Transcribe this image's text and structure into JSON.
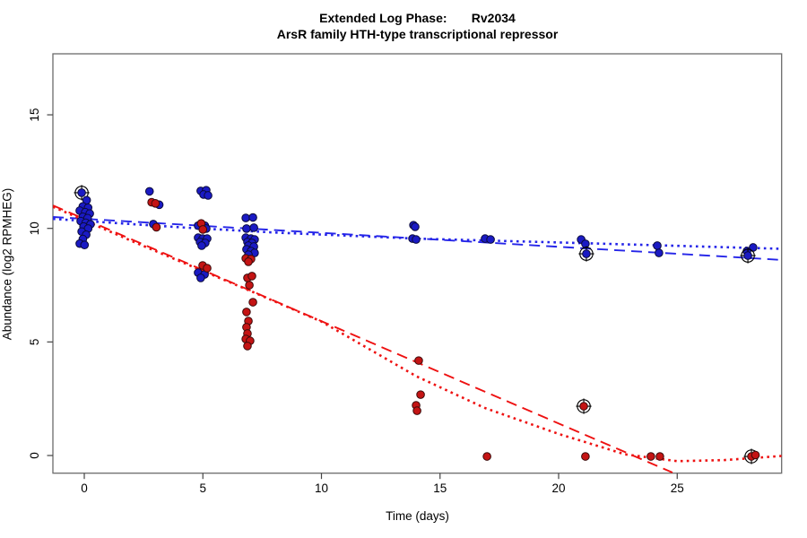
{
  "title": {
    "line1": "Extended Log Phase:       Rv2034",
    "line2": "ArsR family HTH-type transcriptional repressor"
  },
  "chart_data": {
    "type": "scatter",
    "title": "Extended Log Phase: Rv2034",
    "subtitle": "ArsR family HTH-type transcriptional repressor",
    "xlabel": "Time  (days)",
    "ylabel": "Abundance  (log2 RPMHEG)",
    "xlim": [
      -1.32,
      29.4
    ],
    "ylim": [
      -0.78,
      17.69
    ],
    "x_ticks": [
      0,
      5,
      10,
      15,
      20,
      25
    ],
    "y_ticks": [
      0,
      5,
      10,
      15
    ],
    "grid": false,
    "legend": "none",
    "colors": {
      "blue_point": "#1a1ac4",
      "red_point": "#c41414",
      "blue_line": "#2525e8",
      "red_line": "#ee1111",
      "marker_ring": "#000000",
      "axis_box": "#6b6b6b"
    },
    "series": [
      {
        "name": "blue",
        "color": "#1a1ac4",
        "edge": "#0a0a3a",
        "points": [
          [
            -0.11,
            11.57,
            1
          ],
          [
            0.1,
            11.24
          ],
          [
            -0.06,
            10.97
          ],
          [
            0.16,
            10.91
          ],
          [
            -0.19,
            10.78
          ],
          [
            0.04,
            10.71
          ],
          [
            0.23,
            10.65
          ],
          [
            -0.06,
            10.51
          ],
          [
            0.14,
            10.45
          ],
          [
            -0.15,
            10.32
          ],
          [
            0.06,
            10.25
          ],
          [
            0.26,
            10.18
          ],
          [
            -0.03,
            10.08
          ],
          [
            0.16,
            9.99
          ],
          [
            -0.11,
            9.86
          ],
          [
            0.08,
            9.72
          ],
          [
            -0.06,
            9.53
          ],
          [
            -0.19,
            9.33
          ],
          [
            0.01,
            9.27
          ],
          [
            2.75,
            11.63
          ],
          [
            3.16,
            11.04
          ],
          [
            2.91,
            10.19
          ],
          [
            4.91,
            11.65
          ],
          [
            5.14,
            11.68
          ],
          [
            5.03,
            11.49
          ],
          [
            5.22,
            11.45
          ],
          [
            4.8,
            10.12
          ],
          [
            5.08,
            10.12
          ],
          [
            5.14,
            9.99
          ],
          [
            4.8,
            9.59
          ],
          [
            4.99,
            9.55
          ],
          [
            5.18,
            9.55
          ],
          [
            4.88,
            9.4
          ],
          [
            5.1,
            9.36
          ],
          [
            4.95,
            9.24
          ],
          [
            4.8,
            8.05
          ],
          [
            5.07,
            7.97
          ],
          [
            4.91,
            7.82
          ],
          [
            6.81,
            10.46
          ],
          [
            7.11,
            10.48
          ],
          [
            6.84,
            9.99
          ],
          [
            7.15,
            10.03
          ],
          [
            6.81,
            9.59
          ],
          [
            7.03,
            9.55
          ],
          [
            7.18,
            9.51
          ],
          [
            6.88,
            9.4
          ],
          [
            7.07,
            9.36
          ],
          [
            6.92,
            9.24
          ],
          [
            7.15,
            9.2
          ],
          [
            6.84,
            9.08
          ],
          [
            7.03,
            9.0
          ],
          [
            7.18,
            8.92
          ],
          [
            6.92,
            8.84
          ],
          [
            13.88,
            10.14
          ],
          [
            13.95,
            10.07
          ],
          [
            13.84,
            9.55
          ],
          [
            13.99,
            9.51
          ],
          [
            16.9,
            9.55
          ],
          [
            17.13,
            9.51
          ],
          [
            20.95,
            9.51
          ],
          [
            21.13,
            9.32
          ],
          [
            21.17,
            8.88,
            1
          ],
          [
            24.16,
            9.24
          ],
          [
            24.23,
            8.92
          ],
          [
            28.2,
            9.16
          ],
          [
            27.94,
            9.0
          ],
          [
            27.98,
            8.8,
            1
          ]
        ]
      },
      {
        "name": "red",
        "color": "#c41414",
        "edge": "#3a0a0a",
        "points": [
          [
            2.84,
            11.15
          ],
          [
            3.0,
            11.1
          ],
          [
            3.04,
            10.05
          ],
          [
            4.93,
            10.22
          ],
          [
            5.0,
            9.95
          ],
          [
            4.99,
            8.37
          ],
          [
            5.18,
            8.25
          ],
          [
            6.81,
            8.68
          ],
          [
            7.03,
            8.65
          ],
          [
            6.92,
            8.53
          ],
          [
            6.88,
            7.82
          ],
          [
            7.07,
            7.9
          ],
          [
            6.96,
            7.5
          ],
          [
            7.11,
            6.75
          ],
          [
            6.84,
            6.32
          ],
          [
            6.92,
            5.92
          ],
          [
            6.84,
            5.65
          ],
          [
            6.88,
            5.37
          ],
          [
            6.81,
            5.13
          ],
          [
            6.99,
            5.05
          ],
          [
            6.88,
            4.82
          ],
          [
            14.1,
            4.18
          ],
          [
            14.18,
            2.68
          ],
          [
            13.99,
            2.21
          ],
          [
            14.03,
            1.97
          ],
          [
            16.98,
            -0.04
          ],
          [
            21.06,
            2.17,
            1
          ],
          [
            21.13,
            -0.04
          ],
          [
            23.89,
            -0.04
          ],
          [
            24.27,
            -0.04
          ],
          [
            28.13,
            -0.04,
            1
          ],
          [
            28.3,
            0.02
          ]
        ]
      }
    ],
    "trend_lines": [
      {
        "name": "blue-dashed",
        "style": "dashed",
        "color": "#2525e8",
        "points": [
          [
            -1.32,
            10.5
          ],
          [
            29.4,
            8.61
          ]
        ]
      },
      {
        "name": "blue-dotted",
        "style": "dotted",
        "color": "#2525e8",
        "points": [
          [
            -1.32,
            10.42
          ],
          [
            4,
            10.05
          ],
          [
            8,
            9.82
          ],
          [
            14,
            9.55
          ],
          [
            20,
            9.38
          ],
          [
            24,
            9.26
          ],
          [
            29.4,
            9.1
          ]
        ]
      },
      {
        "name": "red-dashed",
        "style": "dashed",
        "color": "#ee1111",
        "points": [
          [
            -1.32,
            11.01
          ],
          [
            24.8,
            -0.75
          ]
        ]
      },
      {
        "name": "red-dotted",
        "style": "dotted",
        "color": "#ee1111",
        "points": [
          [
            -1.32,
            10.95
          ],
          [
            2.1,
            9.4
          ],
          [
            7.0,
            7.25
          ],
          [
            10.0,
            5.9
          ],
          [
            14.0,
            3.49
          ],
          [
            16.9,
            2.09
          ],
          [
            20.0,
            0.95
          ],
          [
            22.8,
            0.05
          ],
          [
            25.0,
            -0.25
          ],
          [
            27.0,
            -0.2
          ],
          [
            29.4,
            -0.02
          ]
        ]
      }
    ]
  }
}
